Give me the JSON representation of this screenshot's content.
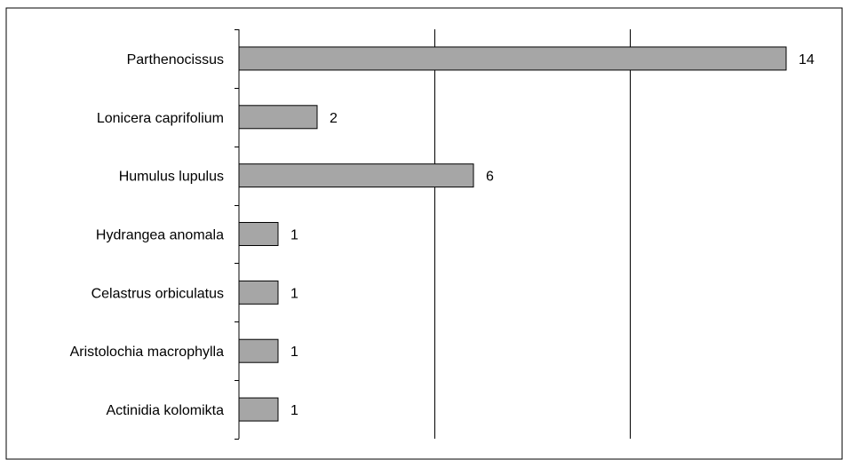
{
  "chart_data": {
    "type": "bar",
    "orientation": "horizontal",
    "categories": [
      "Parthenocissus",
      "Lonicera caprifolium",
      "Humulus lupulus",
      "Hydrangea anomala",
      "Celastrus orbiculatus",
      "Aristolochia macrophylla",
      "Actinidia kolomikta"
    ],
    "values": [
      14,
      2,
      6,
      1,
      1,
      1,
      1
    ],
    "title": "",
    "xlabel": "",
    "ylabel": "",
    "xlim": [
      0,
      15
    ],
    "grid": "vertical",
    "legend": "none",
    "bar_color": "#A6A6A6",
    "bar_stroke": "#000000"
  }
}
